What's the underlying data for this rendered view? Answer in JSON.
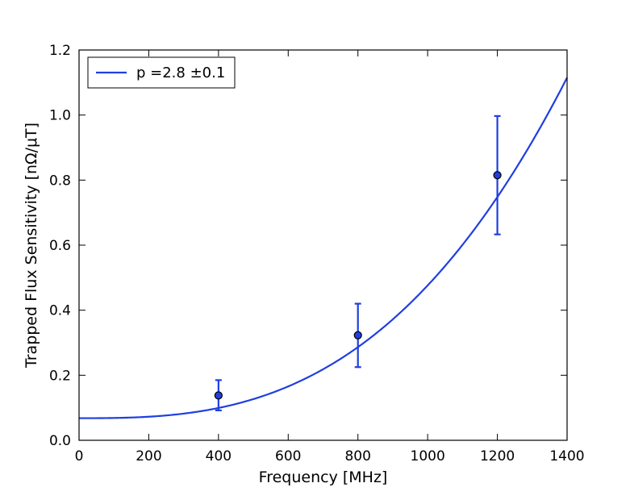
{
  "chart_data": {
    "type": "scatter",
    "title": "",
    "xlabel": "Frequency [MHz]",
    "ylabel": "Trapped Flux Sensitivity [nΩ/μT]",
    "xlim": [
      0,
      1400
    ],
    "ylim": [
      0.0,
      1.2
    ],
    "xticks": [
      "0",
      "200",
      "400",
      "600",
      "800",
      "1000",
      "1200",
      "1400"
    ],
    "yticks": [
      "0.0",
      "0.2",
      "0.4",
      "0.6",
      "0.8",
      "1.0",
      "1.2"
    ],
    "grid": false,
    "legend": {
      "placement": "top-left",
      "entries": [
        "p =2.8 ±0.1"
      ]
    },
    "series": [
      {
        "kind": "measurement",
        "x": [
          400,
          800,
          1200
        ],
        "y": [
          0.138,
          0.323,
          0.815
        ],
        "yerr_low": [
          0.092,
          0.225,
          0.633
        ],
        "yerr_high": [
          0.185,
          0.42,
          0.997
        ],
        "marker_color": "#1f3fe0",
        "marker_edge": "#000000"
      },
      {
        "kind": "fit",
        "name": "p =2.8 ±0.1",
        "model": "a + b*f^p",
        "a": 0.068,
        "p": 2.8,
        "value_at_1400": 1.115,
        "color": "#1f3fe0"
      }
    ]
  }
}
